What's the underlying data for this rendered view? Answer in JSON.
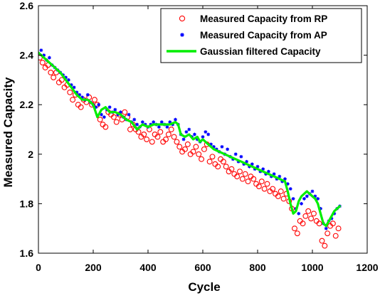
{
  "chart_data": {
    "type": "scatter",
    "xlabel": "Cycle",
    "ylabel": "Measured Capacity",
    "xlim": [
      0,
      1200
    ],
    "ylim": [
      1.6,
      2.6
    ],
    "x_ticks": [
      "0",
      "200",
      "400",
      "600",
      "800",
      "1000",
      "1200"
    ],
    "y_ticks": [
      "1.6",
      "1.8",
      "2",
      "2.2",
      "2.4",
      "2.6"
    ],
    "grid": false,
    "legend_position": "top-right",
    "series": [
      {
        "name": "Measured Capacity from RP",
        "marker": "open-circle",
        "color": "#ff0000",
        "x": [
          5,
          15,
          25,
          35,
          45,
          55,
          65,
          75,
          85,
          95,
          105,
          115,
          125,
          135,
          145,
          155,
          165,
          175,
          185,
          195,
          205,
          215,
          225,
          235,
          245,
          255,
          265,
          275,
          285,
          295,
          305,
          315,
          325,
          335,
          345,
          355,
          365,
          375,
          385,
          395,
          405,
          415,
          425,
          435,
          445,
          455,
          465,
          475,
          485,
          495,
          505,
          515,
          525,
          535,
          545,
          555,
          565,
          575,
          585,
          595,
          605,
          615,
          625,
          635,
          645,
          655,
          665,
          675,
          685,
          695,
          705,
          715,
          725,
          735,
          745,
          755,
          765,
          775,
          785,
          795,
          805,
          815,
          825,
          835,
          845,
          855,
          865,
          875,
          885,
          895,
          905,
          915,
          925,
          935,
          945,
          955,
          965,
          975,
          985,
          995,
          1005,
          1015,
          1025,
          1035,
          1045,
          1055,
          1065,
          1075,
          1085,
          1095
        ],
        "y": [
          2.39,
          2.37,
          2.35,
          2.36,
          2.33,
          2.31,
          2.33,
          2.29,
          2.3,
          2.27,
          2.28,
          2.25,
          2.22,
          2.24,
          2.2,
          2.19,
          2.22,
          2.21,
          2.23,
          2.2,
          2.22,
          2.2,
          2.14,
          2.12,
          2.11,
          2.17,
          2.16,
          2.15,
          2.13,
          2.16,
          2.14,
          2.17,
          2.15,
          2.1,
          2.12,
          2.1,
          2.09,
          2.07,
          2.08,
          2.06,
          2.1,
          2.05,
          2.08,
          2.07,
          2.09,
          2.05,
          2.06,
          2.08,
          2.1,
          2.07,
          2.05,
          2.03,
          2.01,
          2.02,
          2.04,
          2.0,
          2.01,
          2.03,
          2.0,
          1.98,
          2.02,
          2.04,
          1.97,
          1.99,
          1.96,
          1.95,
          1.98,
          1.97,
          1.95,
          1.93,
          1.94,
          1.92,
          1.91,
          1.93,
          1.9,
          1.92,
          1.89,
          1.91,
          1.9,
          1.88,
          1.87,
          1.89,
          1.86,
          1.88,
          1.85,
          1.86,
          1.84,
          1.83,
          1.85,
          1.82,
          1.84,
          1.81,
          1.78,
          1.7,
          1.68,
          1.73,
          1.72,
          1.75,
          1.77,
          1.74,
          1.76,
          1.73,
          1.72,
          1.65,
          1.63,
          1.68,
          1.71,
          1.72,
          1.67,
          1.7
        ]
      },
      {
        "name": "Measured Capacity from AP",
        "marker": "star",
        "color": "#0000ff",
        "x": [
          10,
          20,
          30,
          40,
          50,
          60,
          70,
          80,
          90,
          100,
          110,
          120,
          130,
          140,
          150,
          160,
          170,
          180,
          190,
          200,
          210,
          220,
          230,
          240,
          250,
          260,
          270,
          280,
          290,
          300,
          310,
          320,
          330,
          340,
          350,
          360,
          370,
          380,
          390,
          400,
          410,
          420,
          430,
          440,
          450,
          460,
          470,
          480,
          490,
          500,
          510,
          520,
          530,
          540,
          550,
          560,
          570,
          580,
          590,
          600,
          610,
          620,
          630,
          640,
          650,
          660,
          670,
          680,
          690,
          700,
          710,
          720,
          730,
          740,
          750,
          760,
          770,
          780,
          790,
          800,
          810,
          820,
          830,
          840,
          850,
          860,
          870,
          880,
          890,
          900,
          910,
          920,
          930,
          940,
          950,
          960,
          970,
          980,
          990,
          1000,
          1010,
          1020,
          1030,
          1040,
          1050,
          1060,
          1070,
          1080,
          1090,
          1100
        ],
        "y": [
          2.42,
          2.4,
          2.38,
          2.39,
          2.36,
          2.35,
          2.34,
          2.33,
          2.32,
          2.31,
          2.3,
          2.28,
          2.27,
          2.25,
          2.24,
          2.23,
          2.22,
          2.24,
          2.21,
          2.2,
          2.19,
          2.2,
          2.16,
          2.15,
          2.18,
          2.19,
          2.17,
          2.18,
          2.16,
          2.17,
          2.15,
          2.14,
          2.16,
          2.13,
          2.14,
          2.12,
          2.11,
          2.13,
          2.12,
          2.11,
          2.12,
          2.13,
          2.12,
          2.11,
          2.13,
          2.12,
          2.11,
          2.13,
          2.12,
          2.14,
          2.12,
          2.08,
          2.06,
          2.09,
          2.1,
          2.07,
          2.08,
          2.06,
          2.05,
          2.07,
          2.09,
          2.08,
          2.04,
          2.03,
          2.02,
          2.01,
          2.03,
          2.0,
          2.02,
          1.99,
          1.98,
          2.0,
          1.97,
          1.99,
          1.96,
          1.97,
          1.95,
          1.96,
          1.94,
          1.95,
          1.93,
          1.94,
          1.92,
          1.93,
          1.91,
          1.92,
          1.9,
          1.91,
          1.89,
          1.9,
          1.88,
          1.86,
          1.82,
          1.78,
          1.76,
          1.8,
          1.82,
          1.83,
          1.84,
          1.85,
          1.83,
          1.82,
          1.78,
          1.72,
          1.7,
          1.73,
          1.74,
          1.76,
          1.78,
          1.79
        ]
      },
      {
        "name": "Gaussian filtered Capacity",
        "marker": "line",
        "color": "#00ee00",
        "x": [
          0,
          20,
          40,
          60,
          80,
          100,
          120,
          140,
          160,
          180,
          200,
          215,
          230,
          245,
          260,
          280,
          300,
          320,
          340,
          360,
          380,
          400,
          420,
          440,
          460,
          480,
          500,
          510,
          520,
          535,
          550,
          565,
          580,
          590,
          600,
          620,
          640,
          660,
          680,
          700,
          720,
          740,
          760,
          780,
          800,
          820,
          840,
          860,
          880,
          900,
          910,
          920,
          930,
          940,
          950,
          960,
          970,
          980,
          990,
          1000,
          1010,
          1020,
          1030,
          1040,
          1050,
          1060,
          1070,
          1080,
          1090,
          1100
        ],
        "y": [
          2.41,
          2.39,
          2.37,
          2.35,
          2.33,
          2.3,
          2.27,
          2.24,
          2.22,
          2.22,
          2.2,
          2.15,
          2.18,
          2.19,
          2.17,
          2.17,
          2.16,
          2.14,
          2.13,
          2.1,
          2.12,
          2.11,
          2.12,
          2.12,
          2.12,
          2.12,
          2.13,
          2.12,
          2.08,
          2.07,
          2.08,
          2.06,
          2.07,
          2.05,
          2.06,
          2.04,
          2.02,
          2.01,
          2.0,
          1.99,
          1.98,
          1.97,
          1.96,
          1.95,
          1.94,
          1.93,
          1.92,
          1.91,
          1.9,
          1.89,
          1.85,
          1.8,
          1.76,
          1.77,
          1.81,
          1.83,
          1.84,
          1.85,
          1.84,
          1.83,
          1.82,
          1.8,
          1.76,
          1.72,
          1.71,
          1.73,
          1.75,
          1.77,
          1.78,
          1.79
        ]
      }
    ]
  }
}
